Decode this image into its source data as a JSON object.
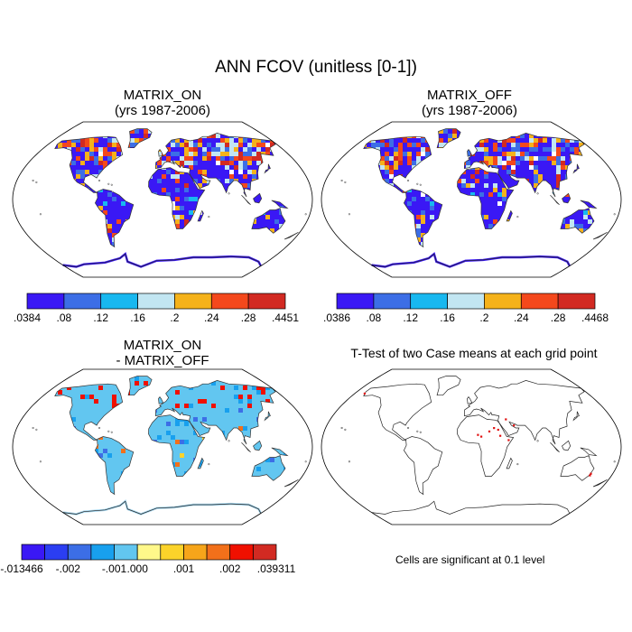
{
  "title": "ANN FCOV (unitless [0-1])",
  "panels": [
    {
      "id": "p1",
      "title_line1": "MATRIX_ON",
      "title_line2": "(yrs 1987-2006)"
    },
    {
      "id": "p2",
      "title_line1": "MATRIX_OFF",
      "title_line2": "(yrs 1987-2006)"
    },
    {
      "id": "p3",
      "title_line1": "MATRIX_ON",
      "title_line2": "- MATRIX_OFF"
    },
    {
      "id": "p4",
      "title_line1": "T-Test of two Case means at each grid point",
      "title_line2": ""
    }
  ],
  "colorbars": {
    "on": {
      "colors": [
        "#3a18f5",
        "#3c6ee6",
        "#18b8f0",
        "#c2e6f2",
        "#f5b21a",
        "#f4481c",
        "#d22a22"
      ],
      "labels": [
        ".0384",
        ".08",
        ".12",
        ".16",
        ".2",
        ".24",
        ".28",
        ".4451"
      ]
    },
    "off": {
      "colors": [
        "#3a18f5",
        "#3c6ee6",
        "#18b8f0",
        "#c2e6f2",
        "#f5b21a",
        "#f4481c",
        "#d22a22"
      ],
      "labels": [
        ".0386",
        ".08",
        ".12",
        ".16",
        ".2",
        ".24",
        ".28",
        ".4468"
      ]
    },
    "diff": {
      "colors": [
        "#3a18f5",
        "#2b3ef2",
        "#3c6ee6",
        "#18a0ee",
        "#62c6f0",
        "#fff88a",
        "#fbd32a",
        "#f6a51a",
        "#f2701a",
        "#f01000",
        "#d22a22"
      ],
      "labels": [
        "-.013466",
        "-.002",
        "-.001",
        ".000",
        ".001",
        ".002",
        ".039311"
      ]
    }
  },
  "significance_note": "Cells are significant at 0.1 level"
}
